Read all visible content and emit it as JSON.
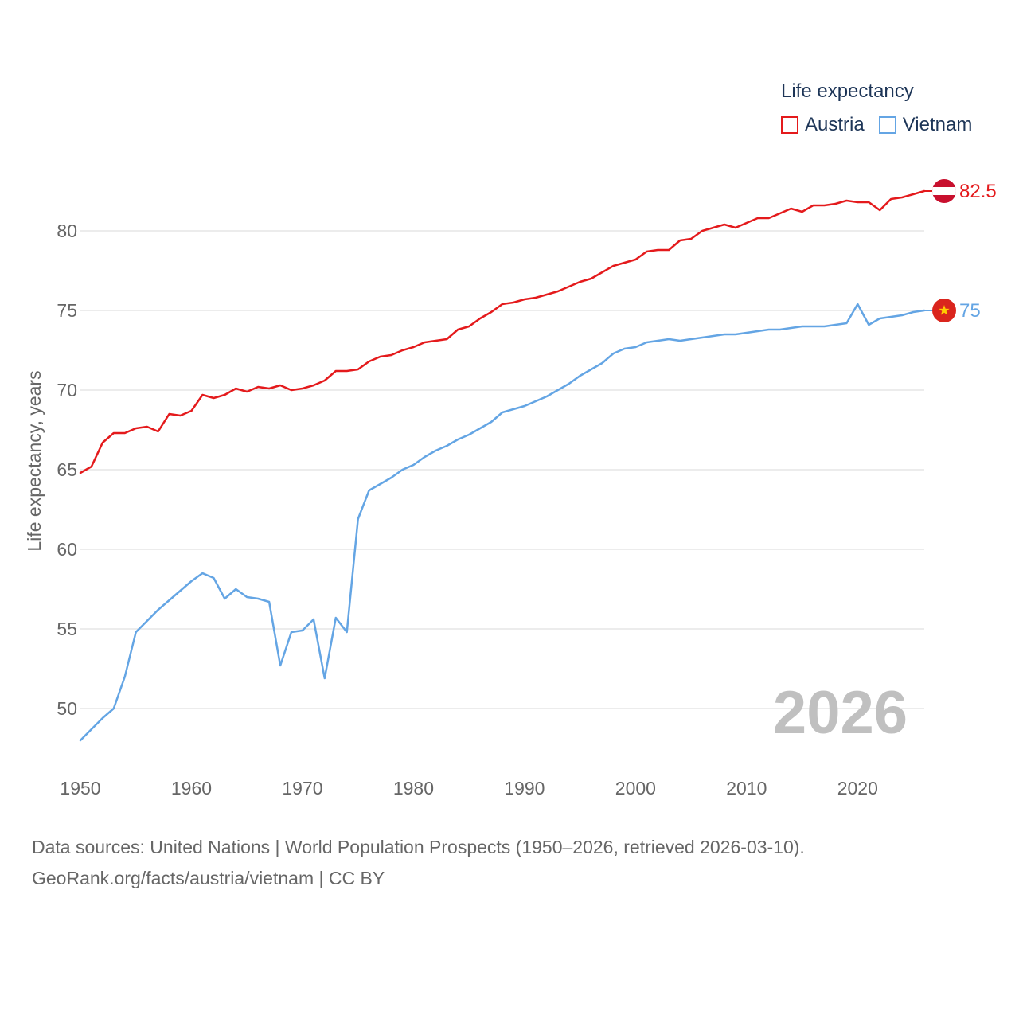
{
  "chart_data": {
    "type": "line",
    "legend": {
      "title": "Life expectancy",
      "position": "top-right"
    },
    "ylabel": "Life expectancy, years",
    "xlabel": "",
    "xlim": [
      1950,
      2026
    ],
    "ylim": [
      46.5,
      84.5
    ],
    "x_ticks": [
      1950,
      1960,
      1970,
      1980,
      1990,
      2000,
      2010,
      2020
    ],
    "y_ticks": [
      50,
      55,
      60,
      65,
      70,
      75,
      80
    ],
    "year_label": "2026",
    "x": [
      1950,
      1951,
      1952,
      1953,
      1954,
      1955,
      1956,
      1957,
      1958,
      1959,
      1960,
      1961,
      1962,
      1963,
      1964,
      1965,
      1966,
      1967,
      1968,
      1969,
      1970,
      1971,
      1972,
      1973,
      1974,
      1975,
      1976,
      1977,
      1978,
      1979,
      1980,
      1981,
      1982,
      1983,
      1984,
      1985,
      1986,
      1987,
      1988,
      1989,
      1990,
      1991,
      1992,
      1993,
      1994,
      1995,
      1996,
      1997,
      1998,
      1999,
      2000,
      2001,
      2002,
      2003,
      2004,
      2005,
      2006,
      2007,
      2008,
      2009,
      2010,
      2011,
      2012,
      2013,
      2014,
      2015,
      2016,
      2017,
      2018,
      2019,
      2020,
      2021,
      2022,
      2023,
      2024,
      2025,
      2026
    ],
    "series": [
      {
        "name": "Austria",
        "color": "#e41a1c",
        "end_label": "82.5",
        "flag": "austria-flag",
        "values": [
          64.8,
          65.2,
          66.7,
          67.3,
          67.3,
          67.6,
          67.7,
          67.4,
          68.5,
          68.4,
          68.7,
          69.7,
          69.5,
          69.7,
          70.1,
          69.9,
          70.2,
          70.1,
          70.3,
          70.0,
          70.1,
          70.3,
          70.6,
          71.2,
          71.2,
          71.3,
          71.8,
          72.1,
          72.2,
          72.5,
          72.7,
          73.0,
          73.1,
          73.2,
          73.8,
          74.0,
          74.5,
          74.9,
          75.4,
          75.5,
          75.7,
          75.8,
          76.0,
          76.2,
          76.5,
          76.8,
          77.0,
          77.4,
          77.8,
          78.0,
          78.2,
          78.7,
          78.8,
          78.8,
          79.4,
          79.5,
          80.0,
          80.2,
          80.4,
          80.2,
          80.5,
          80.8,
          80.8,
          81.1,
          81.4,
          81.2,
          81.6,
          81.6,
          81.7,
          81.9,
          81.8,
          81.8,
          81.3,
          82.0,
          82.1,
          82.3,
          82.5
        ]
      },
      {
        "name": "Vietnam",
        "color": "#64a5e4",
        "end_label": "75",
        "flag": "vietnam-flag",
        "values": [
          48.0,
          48.7,
          49.4,
          50.0,
          52.0,
          54.8,
          55.5,
          56.2,
          56.8,
          57.4,
          58.0,
          58.5,
          58.2,
          56.9,
          57.5,
          57.0,
          56.9,
          56.7,
          52.7,
          54.8,
          54.9,
          55.6,
          51.9,
          55.7,
          54.8,
          61.9,
          63.7,
          64.1,
          64.5,
          65.0,
          65.3,
          65.8,
          66.2,
          66.5,
          66.9,
          67.2,
          67.6,
          68.0,
          68.6,
          68.8,
          69.0,
          69.3,
          69.6,
          70.0,
          70.4,
          70.9,
          71.3,
          71.7,
          72.3,
          72.6,
          72.7,
          73.0,
          73.1,
          73.2,
          73.1,
          73.2,
          73.3,
          73.4,
          73.5,
          73.5,
          73.6,
          73.7,
          73.8,
          73.8,
          73.9,
          74.0,
          74.0,
          74.0,
          74.1,
          74.2,
          75.4,
          74.1,
          74.5,
          74.6,
          74.7,
          74.9,
          75.0
        ]
      }
    ]
  },
  "footer": {
    "sources": "Data sources: United Nations | World Population Prospects (1950–2026, retrieved 2026-03-10).",
    "attribution": "GeoRank.org/facts/austria/vietnam | CC BY"
  }
}
